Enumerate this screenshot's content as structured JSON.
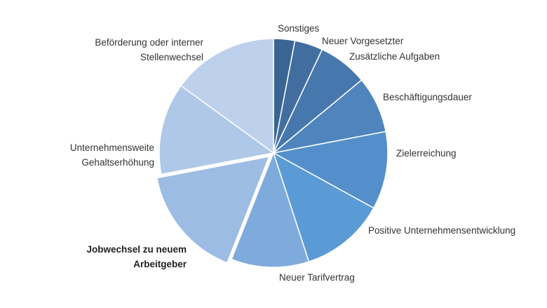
{
  "chart_data": {
    "type": "pie",
    "start_angle_deg": 0,
    "direction": "clockwise",
    "slices": [
      {
        "label": "Sonstiges",
        "value": 3,
        "color": "#3a6592",
        "exploded": false,
        "bold": false
      },
      {
        "label": "Neuer Vorgesetzter",
        "value": 4,
        "color": "#416e9f",
        "exploded": false,
        "bold": false
      },
      {
        "label": "Zusätzliche Aufgaben",
        "value": 7,
        "color": "#4778ad",
        "exploded": false,
        "bold": false
      },
      {
        "label": "Beschäftigungsdauer",
        "value": 8,
        "color": "#4f84bd",
        "exploded": false,
        "bold": false
      },
      {
        "label": "Zielerreichung",
        "value": 11,
        "color": "#558fcb",
        "exploded": false,
        "bold": false
      },
      {
        "label": "Positive Unternehmensentwicklung",
        "value": 12,
        "color": "#5b9bd5",
        "exploded": false,
        "bold": false
      },
      {
        "label": "Neuer Tarifvertrag",
        "value": 11,
        "color": "#7faadc",
        "exploded": false,
        "bold": false
      },
      {
        "label": "Jobwechsel zu neuem Arbeitgeber",
        "value": 16,
        "color": "#9cbce3",
        "exploded": true,
        "bold": true
      },
      {
        "label": "Unternehmensweite Gehaltserhöhung",
        "value": 13,
        "color": "#afc8e8",
        "exploded": false,
        "bold": false
      },
      {
        "label": "Beförderung oder interner Stellenwechsel",
        "value": 15,
        "color": "#bdd1ec",
        "exploded": false,
        "bold": false
      }
    ]
  }
}
